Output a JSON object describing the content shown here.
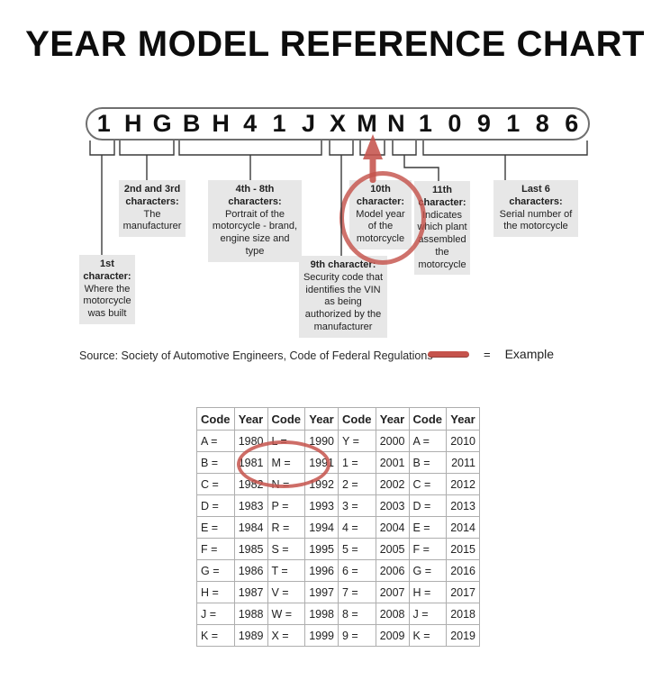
{
  "title": "YEAR MODEL REFERENCE CHART",
  "vin": {
    "characters": [
      "1",
      "H",
      "G",
      "B",
      "H",
      "4",
      "1",
      "J",
      "X",
      "M",
      "N",
      "1",
      "0",
      "9",
      "1",
      "8",
      "6"
    ]
  },
  "callouts": {
    "first": {
      "title": "1st character:",
      "desc": "Where the motorcycle was built"
    },
    "second_third": {
      "title": "2nd and 3rd characters:",
      "desc": "The manufacturer"
    },
    "fourth_eighth": {
      "title": "4th - 8th characters:",
      "desc": "Portrait of the motorcycle - brand, engine size and type"
    },
    "ninth": {
      "title": "9th character:",
      "desc": "Security code that identifies the VIN as being authorized by the manufacturer"
    },
    "tenth": {
      "title": "10th character:",
      "desc": "Model year of the motorcycle"
    },
    "eleventh": {
      "title": "11th character:",
      "desc": "Indicates which plant assembled the motorcycle"
    },
    "last_six": {
      "title": "Last 6 characters:",
      "desc": "Serial number of the motorcycle"
    }
  },
  "source_line": "Source:  Society of Automotive Engineers, Code of Federal Regulations",
  "legend": {
    "equals": "=",
    "label": "Example"
  },
  "colors": {
    "accent_red": "#c5534c",
    "callout_gray": "#e7e7e7"
  },
  "table": {
    "headers": [
      "Code",
      "Year",
      "Code",
      "Year",
      "Code",
      "Year",
      "Code",
      "Year"
    ],
    "rows": [
      [
        "A =",
        "1980",
        "L =",
        "1990",
        "Y =",
        "2000",
        "A =",
        "2010"
      ],
      [
        "B =",
        "1981",
        "M =",
        "1991",
        "1 =",
        "2001",
        "B =",
        "2011"
      ],
      [
        "C =",
        "1982",
        "N =",
        "1992",
        "2 =",
        "2002",
        "C =",
        "2012"
      ],
      [
        "D =",
        "1983",
        "P =",
        "1993",
        "3 =",
        "2003",
        "D =",
        "2013"
      ],
      [
        "E =",
        "1984",
        "R =",
        "1994",
        "4 =",
        "2004",
        "E =",
        "2014"
      ],
      [
        "F =",
        "1985",
        "S =",
        "1995",
        "5 =",
        "2005",
        "F =",
        "2015"
      ],
      [
        "G =",
        "1986",
        "T =",
        "1996",
        "6 =",
        "2006",
        "G =",
        "2016"
      ],
      [
        "H =",
        "1987",
        "V =",
        "1997",
        "7 =",
        "2007",
        "H =",
        "2017"
      ],
      [
        "J =",
        "1988",
        "W =",
        "1998",
        "8 =",
        "2008",
        "J =",
        "2018"
      ],
      [
        "K =",
        "1989",
        "X =",
        "1999",
        "9 =",
        "2009",
        "K =",
        "2019"
      ]
    ]
  }
}
